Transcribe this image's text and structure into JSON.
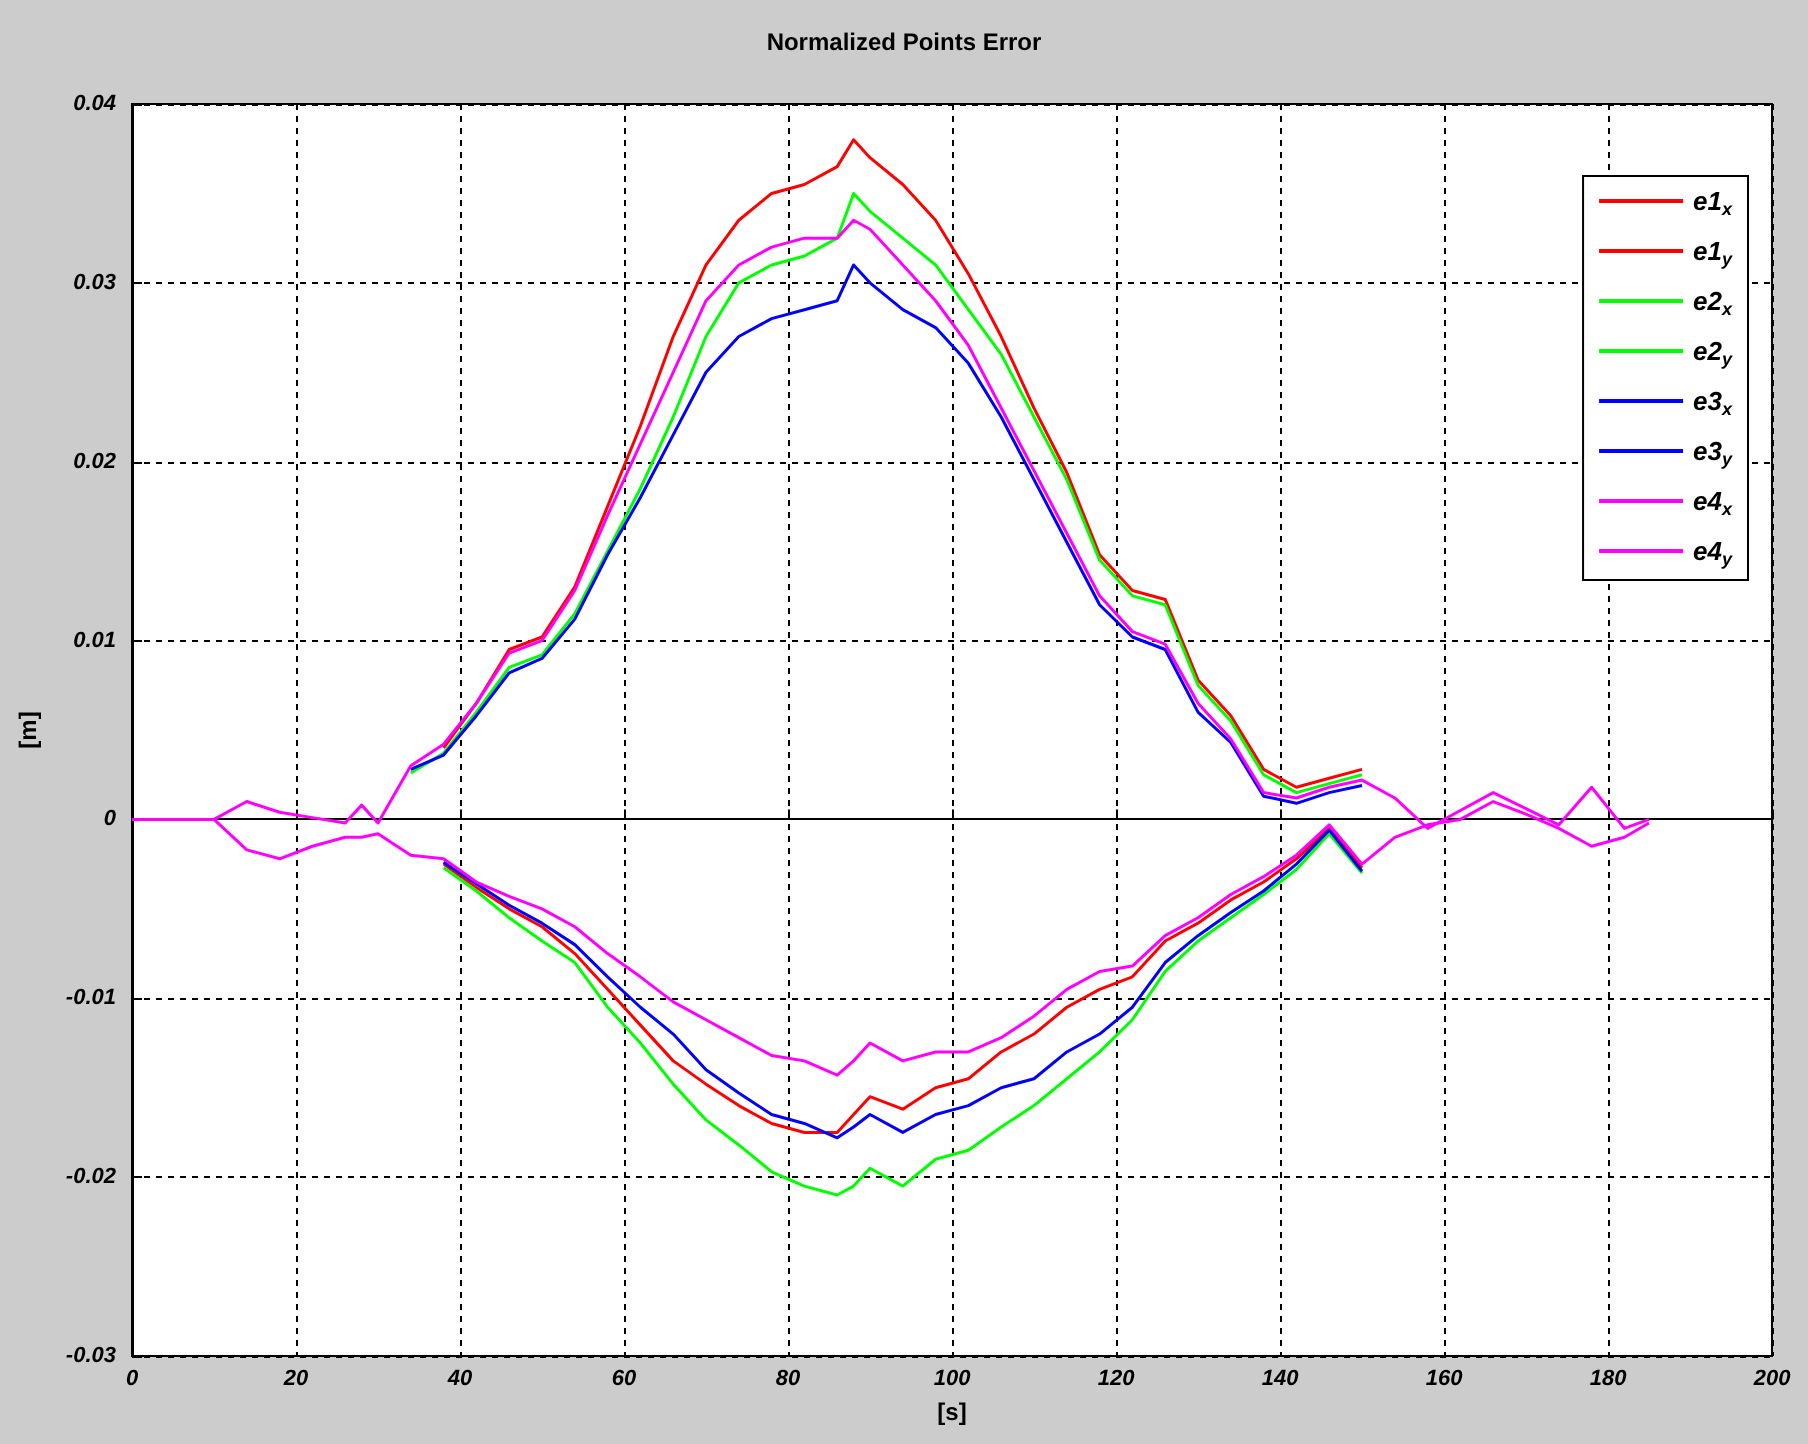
{
  "chart_data": {
    "type": "line",
    "title": "Normalized Points Error",
    "xlabel": "[s]",
    "ylabel": "[m]",
    "x": [
      0,
      10,
      14,
      18,
      22,
      26,
      28,
      30,
      34,
      38,
      42,
      46,
      50,
      54,
      58,
      62,
      66,
      70,
      74,
      78,
      82,
      86,
      88,
      90,
      94,
      98,
      102,
      106,
      110,
      114,
      118,
      122,
      126,
      130,
      134,
      138,
      142,
      146,
      150,
      154,
      158,
      162,
      166,
      170,
      174,
      178,
      182,
      185
    ],
    "series": [
      {
        "name": "e1$_{x}$",
        "color": "#ff0000",
        "values": [
          null,
          null,
          null,
          null,
          null,
          null,
          null,
          null,
          null,
          0.004,
          0.0065,
          0.0095,
          0.0102,
          0.013,
          0.0175,
          0.022,
          0.027,
          0.031,
          0.0335,
          0.035,
          0.0355,
          0.0365,
          0.038,
          0.037,
          0.0355,
          0.0335,
          0.0305,
          0.027,
          0.023,
          0.0194,
          0.0148,
          0.0128,
          0.0123,
          0.0078,
          0.0058,
          0.0028,
          0.0018,
          0.0023,
          0.0028,
          null,
          null,
          null,
          null,
          null,
          null,
          null,
          null,
          null
        ]
      },
      {
        "name": "e1$_{y}$",
        "color": "#ff0000",
        "values": [
          null,
          null,
          null,
          null,
          null,
          null,
          null,
          null,
          null,
          -0.0025,
          -0.0038,
          -0.005,
          -0.006,
          -0.0075,
          -0.0095,
          -0.0115,
          -0.0135,
          -0.0148,
          -0.016,
          -0.017,
          -0.0175,
          -0.0175,
          -0.0165,
          -0.0155,
          -0.0162,
          -0.015,
          -0.0145,
          -0.013,
          -0.012,
          -0.0105,
          -0.0095,
          -0.0088,
          -0.0068,
          -0.0058,
          -0.0045,
          -0.0035,
          -0.0022,
          -0.0005,
          -0.0027,
          null,
          null,
          null,
          null,
          null,
          null,
          null,
          null,
          null
        ]
      },
      {
        "name": "e2$_{x}$",
        "color": "#00ff00",
        "values": [
          null,
          null,
          null,
          null,
          null,
          null,
          null,
          null,
          0.0026,
          0.0037,
          0.006,
          0.0085,
          0.0092,
          0.0115,
          0.015,
          0.0185,
          0.0225,
          0.027,
          0.03,
          0.031,
          0.0315,
          0.0325,
          0.035,
          0.034,
          0.0325,
          0.031,
          0.0285,
          0.026,
          0.0225,
          0.019,
          0.0145,
          0.0125,
          0.012,
          0.0075,
          0.0055,
          0.0025,
          0.0015,
          0.002,
          0.0025,
          null,
          null,
          null,
          null,
          null,
          null,
          null,
          null,
          null
        ]
      },
      {
        "name": "e2$_{y}$",
        "color": "#00ff00",
        "values": [
          null,
          null,
          null,
          null,
          null,
          null,
          null,
          null,
          null,
          -0.0027,
          -0.004,
          -0.0055,
          -0.0068,
          -0.008,
          -0.0105,
          -0.0125,
          -0.0148,
          -0.0168,
          -0.0182,
          -0.0197,
          -0.0205,
          -0.021,
          -0.0205,
          -0.0195,
          -0.0205,
          -0.019,
          -0.0185,
          -0.0172,
          -0.016,
          -0.0145,
          -0.013,
          -0.0112,
          -0.0085,
          -0.0068,
          -0.0055,
          -0.0042,
          -0.0028,
          -0.0008,
          -0.003,
          null,
          null,
          null,
          null,
          null,
          null,
          null,
          null,
          null
        ]
      },
      {
        "name": "e3$_{x}$",
        "color": "#0000ff",
        "values": [
          null,
          null,
          null,
          null,
          null,
          null,
          null,
          null,
          0.0028,
          0.0036,
          0.0058,
          0.0082,
          0.009,
          0.0112,
          0.0148,
          0.018,
          0.0215,
          0.025,
          0.027,
          0.028,
          0.0285,
          0.029,
          0.031,
          0.03,
          0.0285,
          0.0275,
          0.0255,
          0.0225,
          0.019,
          0.0155,
          0.012,
          0.0102,
          0.0095,
          0.006,
          0.0043,
          0.0013,
          0.0009,
          0.0015,
          0.0019,
          null,
          null,
          null,
          null,
          null,
          null,
          null,
          null,
          null
        ]
      },
      {
        "name": "e3$_{y}$",
        "color": "#0000ff",
        "values": [
          null,
          null,
          null,
          null,
          null,
          null,
          null,
          null,
          null,
          -0.0024,
          -0.0036,
          -0.0048,
          -0.0058,
          -0.007,
          -0.0088,
          -0.0105,
          -0.012,
          -0.014,
          -0.0153,
          -0.0165,
          -0.017,
          -0.0178,
          -0.0172,
          -0.0165,
          -0.0175,
          -0.0165,
          -0.016,
          -0.015,
          -0.0145,
          -0.013,
          -0.012,
          -0.0105,
          -0.008,
          -0.0065,
          -0.0052,
          -0.004,
          -0.0025,
          -0.0006,
          -0.0029,
          null,
          null,
          null,
          null,
          null,
          null,
          null,
          null,
          null
        ]
      },
      {
        "name": "e4$_{x}$",
        "color": "#ff00ff",
        "values": [
          null,
          0,
          0.001,
          0.0004,
          0.0001,
          -0.0002,
          0.0008,
          -0.0002,
          0.003,
          0.0042,
          0.0065,
          0.0093,
          0.01,
          0.0128,
          0.017,
          0.021,
          0.025,
          0.029,
          0.031,
          0.032,
          0.0325,
          0.0325,
          0.0335,
          0.033,
          0.031,
          0.029,
          0.0265,
          0.023,
          0.0195,
          0.016,
          0.0125,
          0.0105,
          0.0098,
          0.0065,
          0.0045,
          0.0015,
          0.0012,
          0.0018,
          0.0022,
          0.0012,
          -0.0005,
          0.0005,
          0.0015,
          0.0006,
          -0.0003,
          0.0018,
          -0.0005,
          0
        ]
      },
      {
        "name": "e4$_{y}$",
        "color": "#ff00ff",
        "values": [
          0,
          0,
          -0.0017,
          -0.0022,
          -0.0015,
          -0.001,
          -0.001,
          -0.0008,
          -0.002,
          -0.0022,
          -0.0035,
          -0.0043,
          -0.005,
          -0.006,
          -0.0075,
          -0.0088,
          -0.0102,
          -0.0112,
          -0.0122,
          -0.0132,
          -0.0135,
          -0.0143,
          -0.0135,
          -0.0125,
          -0.0135,
          -0.013,
          -0.013,
          -0.0122,
          -0.011,
          -0.0095,
          -0.0085,
          -0.0082,
          -0.0065,
          -0.0055,
          -0.0042,
          -0.0032,
          -0.002,
          -0.0003,
          -0.0025,
          -0.001,
          -0.0003,
          0,
          0.001,
          0.0003,
          -0.0005,
          -0.0015,
          -0.001,
          -0.0002
        ]
      }
    ],
    "xlim": [
      0,
      200
    ],
    "xticks": [
      0,
      20,
      40,
      60,
      80,
      100,
      120,
      140,
      160,
      180,
      200
    ],
    "ylim": [
      -0.03,
      0.04
    ],
    "yticks": [
      -0.03,
      -0.02,
      -0.01,
      0,
      0.01,
      0.02,
      0.03,
      0.04
    ],
    "grid": true,
    "legend": "top right",
    "marker": "none",
    "line_style": "solid"
  }
}
